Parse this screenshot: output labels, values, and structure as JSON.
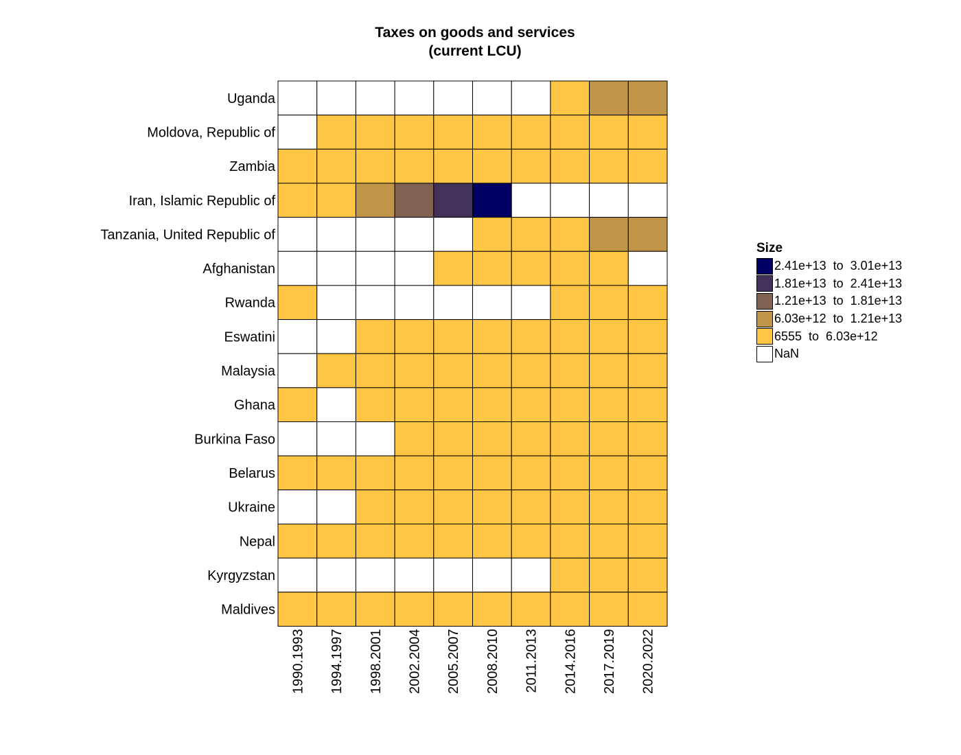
{
  "chart_data": {
    "type": "heatmap",
    "title": "Taxes on goods and services",
    "subtitle": "(current LCU)",
    "x_labels": [
      "1990.1993",
      "1994.1997",
      "1998.2001",
      "2002.2004",
      "2005.2007",
      "2008.2010",
      "2011.2013",
      "2014.2016",
      "2017.2019",
      "2020.2022"
    ],
    "y_labels": [
      "Uganda",
      "Moldova, Republic of",
      "Zambia",
      "Iran, Islamic Republic of",
      "Tanzania, United Republic of",
      "Afghanistan",
      "Rwanda",
      "Eswatini",
      "Malaysia",
      "Ghana",
      "Burkina Faso",
      "Belarus",
      "Ukraine",
      "Nepal",
      "Kyrgyzstan",
      "Maldives"
    ],
    "bin_rows_note": "cell values are legend bin indices: 0 = 6555 to 6.03e+12, 1 = 6.03e+12 to 1.21e+13, 2 = 1.21e+13 to 1.81e+13, 3 = 1.81e+13 to 2.41e+13, 4 = 2.41e+13 to 3.01e+13, null = NaN",
    "values": [
      [
        null,
        null,
        null,
        null,
        null,
        null,
        null,
        0,
        1,
        1
      ],
      [
        null,
        0,
        0,
        0,
        0,
        0,
        0,
        0,
        0,
        0
      ],
      [
        0,
        0,
        0,
        0,
        0,
        0,
        0,
        0,
        0,
        0
      ],
      [
        0,
        0,
        1,
        2,
        3,
        4,
        null,
        null,
        null,
        null
      ],
      [
        null,
        null,
        null,
        null,
        null,
        0,
        0,
        0,
        1,
        1
      ],
      [
        null,
        null,
        null,
        null,
        0,
        0,
        0,
        0,
        0,
        null
      ],
      [
        0,
        null,
        null,
        null,
        null,
        null,
        null,
        0,
        0,
        0
      ],
      [
        null,
        null,
        0,
        0,
        0,
        0,
        0,
        0,
        0,
        0
      ],
      [
        null,
        0,
        0,
        0,
        0,
        0,
        0,
        0,
        0,
        0
      ],
      [
        0,
        null,
        0,
        0,
        0,
        0,
        0,
        0,
        0,
        0
      ],
      [
        null,
        null,
        null,
        0,
        0,
        0,
        0,
        0,
        0,
        0
      ],
      [
        0,
        0,
        0,
        0,
        0,
        0,
        0,
        0,
        0,
        0
      ],
      [
        null,
        null,
        0,
        0,
        0,
        0,
        0,
        0,
        0,
        0
      ],
      [
        0,
        0,
        0,
        0,
        0,
        0,
        0,
        0,
        0,
        0
      ],
      [
        null,
        null,
        null,
        null,
        null,
        null,
        null,
        0,
        0,
        0
      ],
      [
        0,
        0,
        0,
        0,
        0,
        0,
        0,
        0,
        0,
        0
      ]
    ],
    "legend": {
      "title": "Size",
      "placement": "right",
      "bins": [
        {
          "label": "2.41e+13  to  3.01e+13",
          "color": "#000064"
        },
        {
          "label": "1.81e+13  to  2.41e+13",
          "color": "#42325a"
        },
        {
          "label": "1.21e+13  to  1.81e+13",
          "color": "#7f6250"
        },
        {
          "label": "6.03e+12  to  1.21e+13",
          "color": "#c09548"
        },
        {
          "label": "6555  to  6.03e+12",
          "color": "#ffc544"
        },
        {
          "label": "NaN",
          "color": "#ffffff"
        }
      ]
    },
    "bin_colors": [
      "#ffc544",
      "#c09548",
      "#7f6250",
      "#42325a",
      "#000064"
    ],
    "nan_color": "#ffffff",
    "grid": true
  }
}
